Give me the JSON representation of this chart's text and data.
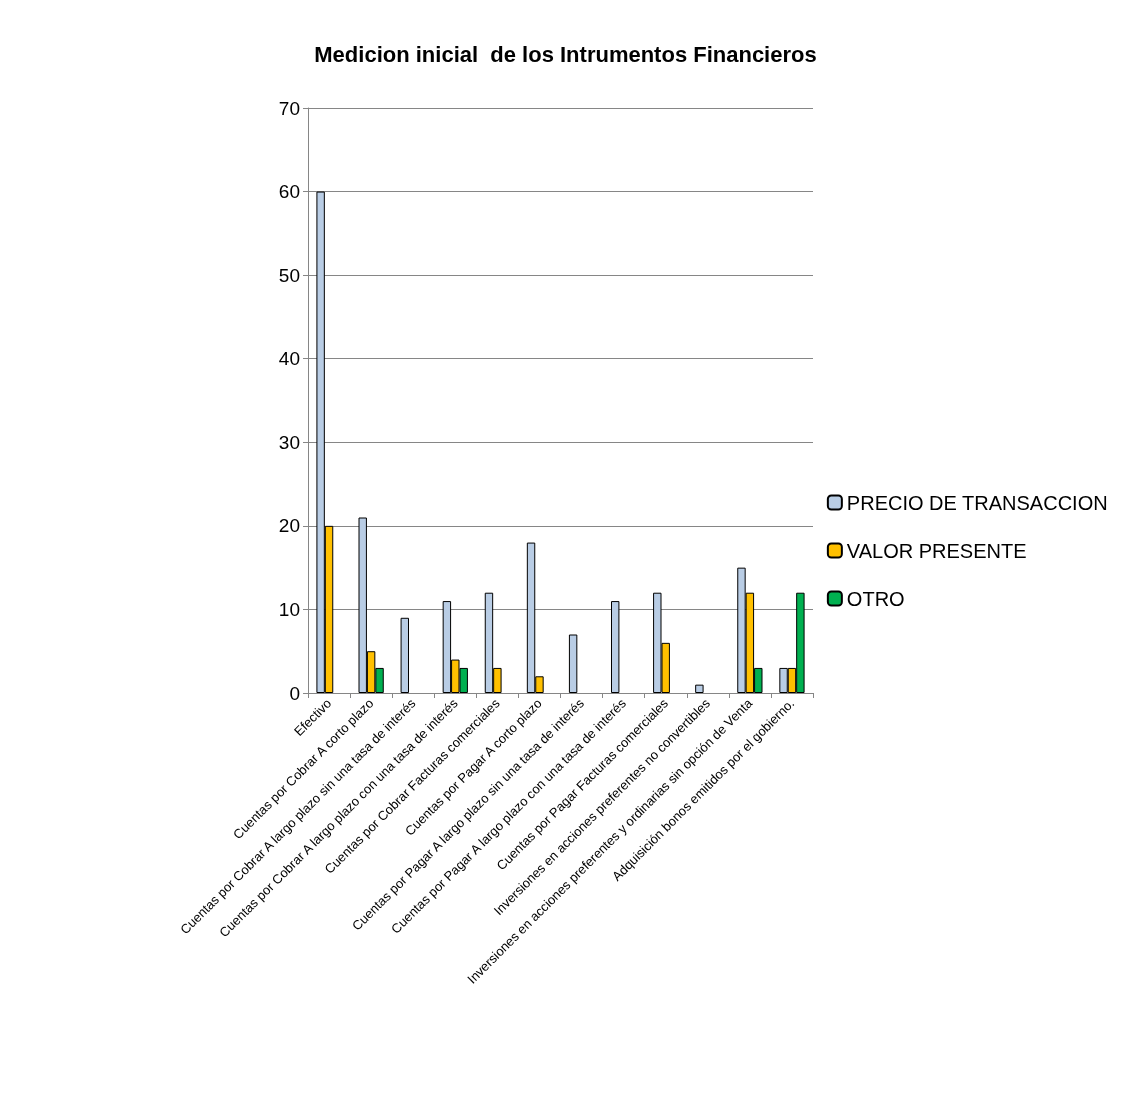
{
  "chart_data": {
    "type": "bar",
    "title": "Medicion inicial  de los Intrumentos Financieros",
    "categories": [
      "Efectivo",
      "Cuentas por Cobrar A corto plazo",
      "Cuentas por Cobrar A largo plazo sin una tasa de interés",
      "Cuentas por Cobrar A largo plazo con una tasa de interés",
      "Cuentas por Cobrar Facturas comerciales",
      "Cuentas por Pagar A corto plazo",
      "Cuentas por Pagar A largo plazo sin una tasa de interés",
      "Cuentas por Pagar A largo plazo con una tasa de interés",
      "Cuentas por Pagar Facturas comerciales",
      "Inversiones en acciones preferentes no convertibles",
      "Inversiones en acciones preferentes y ordinarias sin opción de Venta",
      "Adquisición bonos emitidos por el gobierno."
    ],
    "series": [
      {
        "name": "PRECIO DE TRANSACCION",
        "color": "#b9cde5",
        "values": [
          60,
          21,
          9,
          11,
          12,
          18,
          7,
          11,
          12,
          1,
          15,
          3
        ]
      },
      {
        "name": "VALOR PRESENTE",
        "color": "#ffc000",
        "values": [
          20,
          5,
          null,
          4,
          3,
          2,
          null,
          null,
          6,
          null,
          12,
          3
        ]
      },
      {
        "name": "OTRO",
        "color": "#00b050",
        "values": [
          null,
          3,
          null,
          3,
          null,
          null,
          null,
          null,
          null,
          null,
          3,
          12
        ]
      }
    ],
    "ylim": [
      0,
      70
    ],
    "yticks": [
      0,
      10,
      20,
      30,
      40,
      50,
      60,
      70
    ],
    "grid": "y",
    "legend": "right"
  }
}
